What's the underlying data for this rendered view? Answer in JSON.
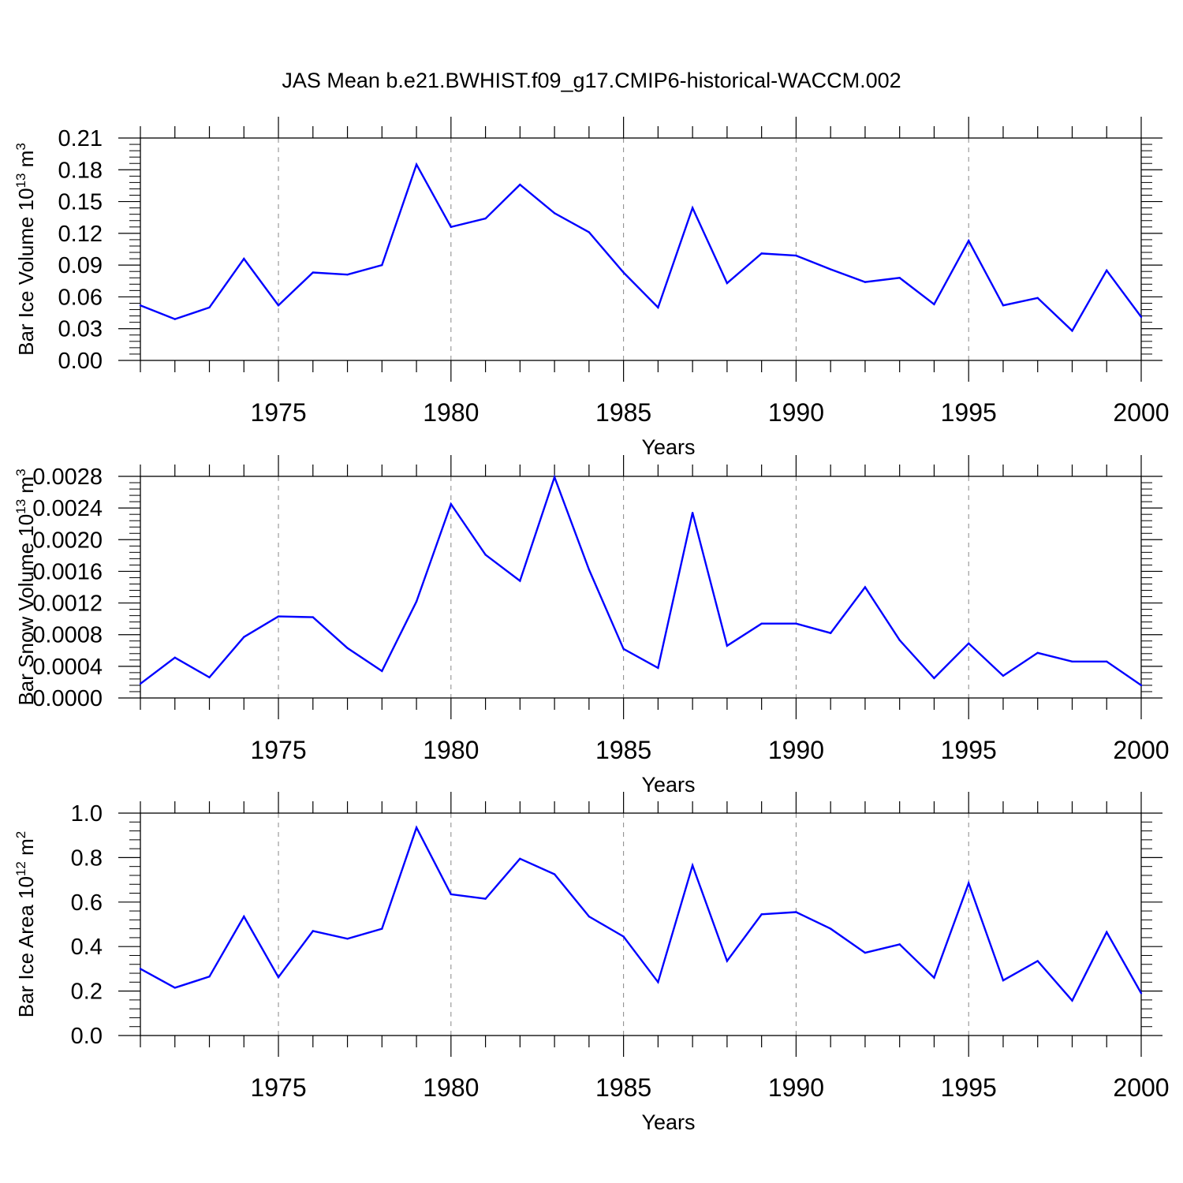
{
  "figure_title": "JAS Mean b.e21.BWHIST.f09_g17.CMIP6-historical-WACCM.002",
  "colors": {
    "line": "#0000ff",
    "axis": "#000000",
    "grid": "#888888"
  },
  "chart_data": [
    {
      "type": "line",
      "ylabel_text": "Bar Ice Volume 10",
      "ylabel_exp": "13",
      "ylabel_unit": "m",
      "ylabel_unit_exp": "3",
      "xlabel": "Years",
      "xlim": [
        1971,
        2000
      ],
      "ylim": [
        0,
        0.21
      ],
      "yticks": [
        "0.00",
        "0.03",
        "0.06",
        "0.09",
        "0.12",
        "0.15",
        "0.18",
        "0.21"
      ],
      "xticks": [
        "1975",
        "1980",
        "1985",
        "1990",
        "1995",
        "2000"
      ],
      "grid": "vertical dashed at major x ticks",
      "series": [
        {
          "name": "ice volume",
          "x": [
            1971,
            1972,
            1973,
            1974,
            1975,
            1976,
            1977,
            1978,
            1979,
            1980,
            1981,
            1982,
            1983,
            1984,
            1985,
            1986,
            1987,
            1988,
            1989,
            1990,
            1991,
            1992,
            1993,
            1994,
            1995,
            1996,
            1997,
            1998,
            1999,
            2000
          ],
          "values": [
            0.052,
            0.039,
            0.05,
            0.096,
            0.052,
            0.083,
            0.081,
            0.09,
            0.185,
            0.126,
            0.134,
            0.166,
            0.139,
            0.121,
            0.083,
            0.05,
            0.144,
            0.073,
            0.101,
            0.099,
            0.086,
            0.074,
            0.078,
            0.053,
            0.113,
            0.052,
            0.059,
            0.028,
            0.085,
            0.041
          ]
        }
      ]
    },
    {
      "type": "line",
      "ylabel_text": "Bar Snow Volume 10",
      "ylabel_exp": "13",
      "ylabel_unit": "m",
      "ylabel_unit_exp": "3",
      "xlabel": "Years",
      "xlim": [
        1971,
        2000
      ],
      "ylim": [
        0,
        0.0028
      ],
      "yticks": [
        "0.0000",
        "0.0004",
        "0.0008",
        "0.0012",
        "0.0016",
        "0.0020",
        "0.0024",
        "0.0028"
      ],
      "xticks": [
        "1975",
        "1980",
        "1985",
        "1990",
        "1995",
        "2000"
      ],
      "grid": "vertical dashed at major x ticks",
      "series": [
        {
          "name": "snow volume",
          "x": [
            1971,
            1972,
            1973,
            1974,
            1975,
            1976,
            1977,
            1978,
            1979,
            1980,
            1981,
            1982,
            1983,
            1984,
            1985,
            1986,
            1987,
            1988,
            1989,
            1990,
            1991,
            1992,
            1993,
            1994,
            1995,
            1996,
            1997,
            1998,
            1999,
            2000
          ],
          "values": [
            0.00018,
            0.00051,
            0.00026,
            0.00077,
            0.00103,
            0.00102,
            0.00063,
            0.00034,
            0.00122,
            0.00245,
            0.00181,
            0.00148,
            0.00279,
            0.00162,
            0.00062,
            0.00038,
            0.00234,
            0.00066,
            0.00094,
            0.00094,
            0.00082,
            0.0014,
            0.00073,
            0.00025,
            0.00069,
            0.00028,
            0.00057,
            0.00046,
            0.00046,
            0.00016
          ]
        }
      ]
    },
    {
      "type": "line",
      "ylabel_text": "Bar Ice Area 10",
      "ylabel_exp": "12",
      "ylabel_unit": "m",
      "ylabel_unit_exp": "2",
      "xlabel": "Years",
      "xlim": [
        1971,
        2000
      ],
      "ylim": [
        0,
        1.0
      ],
      "yticks": [
        "0.0",
        "0.2",
        "0.4",
        "0.6",
        "0.8",
        "1.0"
      ],
      "xticks": [
        "1975",
        "1980",
        "1985",
        "1990",
        "1995",
        "2000"
      ],
      "grid": "vertical dashed at major x ticks",
      "series": [
        {
          "name": "ice area",
          "x": [
            1971,
            1972,
            1973,
            1974,
            1975,
            1976,
            1977,
            1978,
            1979,
            1980,
            1981,
            1982,
            1983,
            1984,
            1985,
            1986,
            1987,
            1988,
            1989,
            1990,
            1991,
            1992,
            1993,
            1994,
            1995,
            1996,
            1997,
            1998,
            1999,
            2000
          ],
          "values": [
            0.3,
            0.215,
            0.265,
            0.535,
            0.262,
            0.47,
            0.435,
            0.48,
            0.935,
            0.635,
            0.615,
            0.795,
            0.725,
            0.535,
            0.445,
            0.24,
            0.765,
            0.335,
            0.545,
            0.555,
            0.48,
            0.372,
            0.41,
            0.26,
            0.685,
            0.248,
            0.335,
            0.157,
            0.465,
            0.19
          ]
        }
      ]
    }
  ]
}
